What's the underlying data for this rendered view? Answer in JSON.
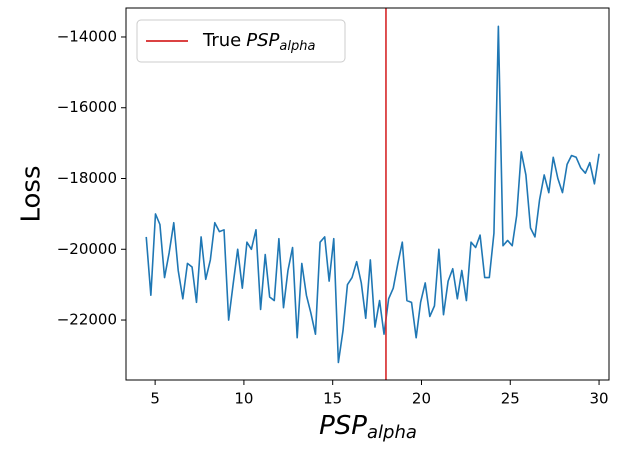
{
  "chart_data": {
    "type": "line",
    "x_label": {
      "text": "PSP",
      "sub": "alpha"
    },
    "y_label": "Loss",
    "x": [
      4.5,
      4.76,
      5.02,
      5.27,
      5.53,
      5.79,
      6.05,
      6.3,
      6.56,
      6.82,
      7.08,
      7.33,
      7.59,
      7.85,
      8.11,
      8.36,
      8.62,
      8.88,
      9.14,
      9.39,
      9.65,
      9.91,
      10.17,
      10.42,
      10.68,
      10.94,
      11.2,
      11.45,
      11.71,
      11.97,
      12.23,
      12.48,
      12.74,
      13.0,
      13.26,
      13.52,
      13.77,
      14.03,
      14.29,
      14.55,
      14.8,
      15.06,
      15.32,
      15.58,
      15.83,
      16.09,
      16.35,
      16.61,
      16.86,
      17.12,
      17.38,
      17.64,
      17.89,
      18.15,
      18.41,
      18.67,
      18.92,
      19.18,
      19.44,
      19.7,
      19.95,
      20.21,
      20.47,
      20.73,
      20.98,
      21.24,
      21.5,
      21.76,
      22.02,
      22.27,
      22.53,
      22.79,
      23.05,
      23.3,
      23.56,
      23.82,
      24.08,
      24.33,
      24.59,
      24.85,
      25.11,
      25.36,
      25.62,
      25.88,
      26.14,
      26.39,
      26.65,
      26.91,
      27.17,
      27.42,
      27.68,
      27.94,
      28.2,
      28.45,
      28.71,
      28.97,
      29.23,
      29.48,
      29.74,
      30.0
    ],
    "series": [
      {
        "color": "#1f77b4",
        "values": [
          -19650,
          -21300,
          -19000,
          -19300,
          -20800,
          -20100,
          -19250,
          -20600,
          -21400,
          -20400,
          -20500,
          -21500,
          -19650,
          -20850,
          -20300,
          -19250,
          -19500,
          -19450,
          -22000,
          -21000,
          -20000,
          -21100,
          -19800,
          -20000,
          -19450,
          -21700,
          -20150,
          -21350,
          -21450,
          -19700,
          -21650,
          -20600,
          -19950,
          -22500,
          -20400,
          -21300,
          -21800,
          -22400,
          -19800,
          -19650,
          -20900,
          -19700,
          -23200,
          -22300,
          -21000,
          -20800,
          -20350,
          -20950,
          -21950,
          -20300,
          -22200,
          -21450,
          -22400,
          -21400,
          -21100,
          -20400,
          -19800,
          -21450,
          -21500,
          -22500,
          -21500,
          -20950,
          -21900,
          -21600,
          -20000,
          -21850,
          -20900,
          -20550,
          -21400,
          -20600,
          -21450,
          -19800,
          -19950,
          -19600,
          -20800,
          -20800,
          -19550,
          -13700,
          -19900,
          -19750,
          -19900,
          -19050,
          -17250,
          -17900,
          -19400,
          -19650,
          -18600,
          -17900,
          -18400,
          -17400,
          -18000,
          -18400,
          -17600,
          -17350,
          -17400,
          -17700,
          -17850,
          -17550,
          -18150,
          -17300
        ]
      }
    ],
    "vline": {
      "x": 18,
      "color": "#d62728",
      "label": "True",
      "label_var": "PSP",
      "label_sub": "alpha"
    },
    "legend": "upper left",
    "xlim": [
      3.36,
      30.56
    ],
    "xticks": [
      5,
      10,
      15,
      20,
      25,
      30
    ],
    "ylim": [
      -23695,
      -13181
    ],
    "yticks": [
      {
        "value": -14000,
        "label": "−14000"
      },
      {
        "value": -16000,
        "label": "−16000"
      },
      {
        "value": -18000,
        "label": "−18000"
      },
      {
        "value": -20000,
        "label": "−20000"
      },
      {
        "value": -22000,
        "label": "−22000"
      }
    ]
  }
}
